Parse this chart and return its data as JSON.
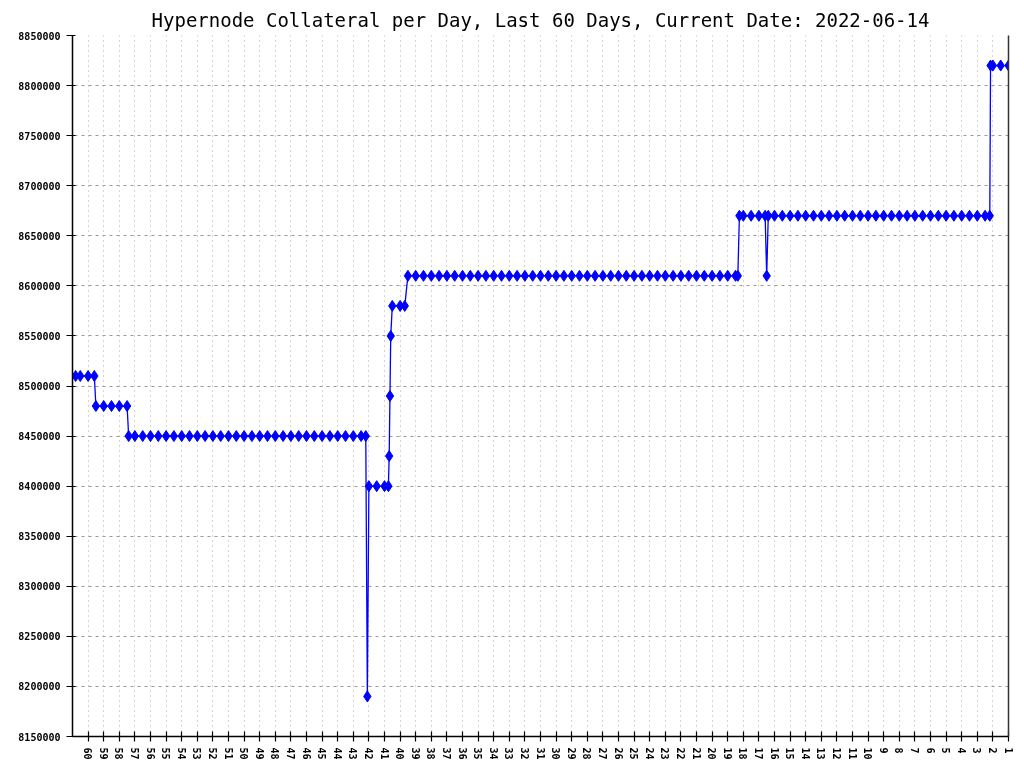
{
  "chart_data": {
    "type": "line",
    "title": "Hypernode Collateral per Day, Last 60 Days, Current Date: 2022-06-14",
    "x": [
      60.8,
      60.5,
      60,
      59.6,
      59.5,
      59,
      58.5,
      58,
      57.5,
      57.4,
      57,
      56.5,
      56,
      55.5,
      55,
      54.5,
      54,
      53.5,
      53,
      52.5,
      52,
      51.5,
      51,
      50.5,
      50,
      49.5,
      49,
      48.5,
      48,
      47.5,
      47,
      46.5,
      46,
      45.5,
      45,
      44.5,
      44,
      43.5,
      43,
      42.5,
      42.2,
      42.1,
      42,
      41.5,
      41,
      40.75,
      40.7,
      40.65,
      40.6,
      40.5,
      40,
      39.7,
      39.5,
      39,
      38.5,
      38,
      37.5,
      37,
      36.5,
      36,
      35.5,
      35,
      34.5,
      34,
      33.5,
      33,
      32.5,
      32,
      31.5,
      31,
      30.5,
      30,
      29.5,
      29,
      28.5,
      28,
      27.5,
      27,
      26.5,
      26,
      25.5,
      25,
      24.5,
      24,
      23.5,
      23,
      22.5,
      22,
      21.5,
      21,
      20.5,
      20,
      19.5,
      19,
      18.5,
      18.35,
      18.25,
      18,
      17.5,
      17,
      16.6,
      16.5,
      16.4,
      16,
      15.5,
      15,
      14.5,
      14,
      13.5,
      13,
      12.5,
      12,
      11.5,
      11,
      10.5,
      10,
      9.5,
      9,
      8.5,
      8,
      7.5,
      7,
      6.5,
      6,
      5.5,
      5,
      4.5,
      4,
      3.5,
      3,
      2.5,
      2.2,
      2.15,
      2,
      1.5,
      1
    ],
    "series": [
      {
        "color": "#0000ff",
        "values": [
          8510000,
          8510000,
          8510000,
          8510000,
          8480000,
          8480000,
          8480000,
          8480000,
          8480000,
          8450000,
          8450000,
          8450000,
          8450000,
          8450000,
          8450000,
          8450000,
          8450000,
          8450000,
          8450000,
          8450000,
          8450000,
          8450000,
          8450000,
          8450000,
          8450000,
          8450000,
          8450000,
          8450000,
          8450000,
          8450000,
          8450000,
          8450000,
          8450000,
          8450000,
          8450000,
          8450000,
          8450000,
          8450000,
          8450000,
          8450000,
          8450000,
          8190000,
          8400000,
          8400000,
          8400000,
          8400000,
          8430000,
          8490000,
          8550000,
          8580000,
          8580000,
          8580000,
          8610000,
          8610000,
          8610000,
          8610000,
          8610000,
          8610000,
          8610000,
          8610000,
          8610000,
          8610000,
          8610000,
          8610000,
          8610000,
          8610000,
          8610000,
          8610000,
          8610000,
          8610000,
          8610000,
          8610000,
          8610000,
          8610000,
          8610000,
          8610000,
          8610000,
          8610000,
          8610000,
          8610000,
          8610000,
          8610000,
          8610000,
          8610000,
          8610000,
          8610000,
          8610000,
          8610000,
          8610000,
          8610000,
          8610000,
          8610000,
          8610000,
          8610000,
          8610000,
          8610000,
          8670000,
          8670000,
          8670000,
          8670000,
          8670000,
          8610000,
          8670000,
          8670000,
          8670000,
          8670000,
          8670000,
          8670000,
          8670000,
          8670000,
          8670000,
          8670000,
          8670000,
          8670000,
          8670000,
          8670000,
          8670000,
          8670000,
          8670000,
          8670000,
          8670000,
          8670000,
          8670000,
          8670000,
          8670000,
          8670000,
          8670000,
          8670000,
          8670000,
          8670000,
          8670000,
          8670000,
          8820000,
          8820000,
          8820000,
          8820000
        ]
      }
    ],
    "xlim": [
      61,
      1
    ],
    "xticks": [
      60,
      59,
      58,
      57,
      56,
      55,
      54,
      53,
      52,
      51,
      50,
      49,
      48,
      47,
      46,
      45,
      44,
      43,
      42,
      41,
      40,
      39,
      38,
      37,
      36,
      35,
      34,
      33,
      32,
      31,
      30,
      29,
      28,
      27,
      26,
      25,
      24,
      23,
      22,
      21,
      20,
      19,
      18,
      17,
      16,
      15,
      14,
      13,
      12,
      11,
      10,
      9,
      8,
      7,
      6,
      5,
      4,
      3,
      2,
      1
    ],
    "ylim": [
      8150000,
      8850000
    ],
    "yticks": [
      8150000,
      8200000,
      8250000,
      8300000,
      8350000,
      8400000,
      8450000,
      8500000,
      8550000,
      8600000,
      8650000,
      8700000,
      8750000,
      8800000,
      8850000
    ],
    "grid": true,
    "marker": "diamond",
    "line_style": "solid"
  }
}
